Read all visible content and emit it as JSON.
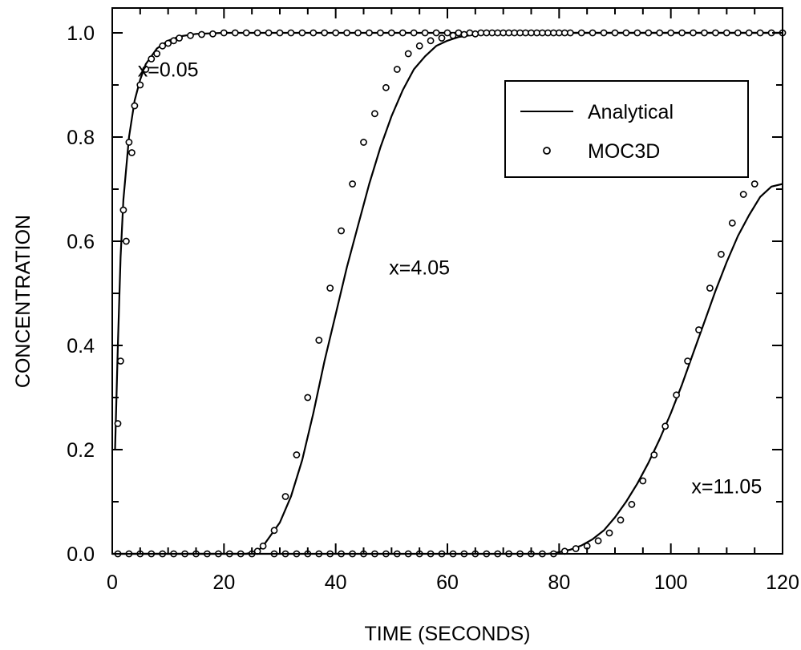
{
  "chart_data": {
    "type": "line",
    "title": "",
    "xlabel": "TIME (SECONDS)",
    "ylabel": "CONCENTRATION",
    "xlim": [
      0,
      120
    ],
    "ylim": [
      0,
      1.0
    ],
    "xticks": [
      0,
      20,
      40,
      60,
      80,
      100,
      120
    ],
    "yticks": [
      0.0,
      0.2,
      0.4,
      0.6,
      0.8,
      1.0
    ],
    "xtick_labels": [
      "0",
      "20",
      "40",
      "60",
      "80",
      "100",
      "120"
    ],
    "ytick_labels": [
      "0.0",
      "0.2",
      "0.4",
      "0.6",
      "0.8",
      "1.0"
    ],
    "grid": false,
    "legend": {
      "position": "top-right",
      "entries": [
        {
          "label": "Analytical",
          "marker": "line"
        },
        {
          "label": "MOC3D",
          "marker": "open-circle"
        }
      ]
    },
    "colors": {
      "line": "#000000",
      "marker": "#000000",
      "background": "#ffffff"
    },
    "series": [
      {
        "name": "Analytical",
        "curve_label": "x=0.05",
        "style": "line",
        "points": [
          [
            0.5,
            0.2
          ],
          [
            1,
            0.4
          ],
          [
            1.5,
            0.57
          ],
          [
            2,
            0.68
          ],
          [
            3,
            0.8
          ],
          [
            4,
            0.87
          ],
          [
            5,
            0.91
          ],
          [
            6,
            0.94
          ],
          [
            8,
            0.97
          ],
          [
            10,
            0.985
          ],
          [
            12,
            0.993
          ],
          [
            15,
            0.998
          ],
          [
            20,
            1.0
          ],
          [
            120,
            1.0
          ]
        ]
      },
      {
        "name": "MOC3D",
        "curve_label": "x=0.05",
        "style": "markers",
        "points": [
          [
            1,
            0.25
          ],
          [
            1.5,
            0.37
          ],
          [
            2,
            0.66
          ],
          [
            2.5,
            0.6
          ],
          [
            3,
            0.79
          ],
          [
            3.5,
            0.77
          ],
          [
            4,
            0.86
          ],
          [
            5,
            0.9
          ],
          [
            6,
            0.93
          ],
          [
            7,
            0.95
          ],
          [
            8,
            0.96
          ],
          [
            9,
            0.975
          ],
          [
            10,
            0.98
          ],
          [
            11,
            0.985
          ],
          [
            12,
            0.99
          ],
          [
            14,
            0.995
          ],
          [
            16,
            0.997
          ],
          [
            18,
            0.998
          ],
          [
            20,
            1.0
          ],
          [
            22,
            1.0
          ],
          [
            24,
            1.0
          ],
          [
            26,
            1.0
          ],
          [
            28,
            1.0
          ],
          [
            30,
            1.0
          ],
          [
            32,
            1.0
          ],
          [
            34,
            1.0
          ],
          [
            36,
            1.0
          ],
          [
            38,
            1.0
          ],
          [
            40,
            1.0
          ],
          [
            42,
            1.0
          ],
          [
            44,
            1.0
          ],
          [
            46,
            1.0
          ],
          [
            48,
            1.0
          ],
          [
            50,
            1.0
          ],
          [
            52,
            1.0
          ],
          [
            54,
            1.0
          ],
          [
            56,
            1.0
          ],
          [
            58,
            1.0
          ],
          [
            60,
            1.0
          ],
          [
            62,
            1.0
          ],
          [
            64,
            1.0
          ],
          [
            66,
            1.0
          ],
          [
            68,
            1.0
          ],
          [
            70,
            1.0
          ],
          [
            72,
            1.0
          ],
          [
            74,
            1.0
          ],
          [
            76,
            1.0
          ],
          [
            78,
            1.0
          ],
          [
            80,
            1.0
          ],
          [
            82,
            1.0
          ],
          [
            84,
            1.0
          ],
          [
            86,
            1.0
          ],
          [
            88,
            1.0
          ],
          [
            90,
            1.0
          ],
          [
            92,
            1.0
          ],
          [
            94,
            1.0
          ],
          [
            96,
            1.0
          ],
          [
            98,
            1.0
          ],
          [
            100,
            1.0
          ],
          [
            102,
            1.0
          ],
          [
            104,
            1.0
          ],
          [
            106,
            1.0
          ],
          [
            108,
            1.0
          ],
          [
            110,
            1.0
          ],
          [
            112,
            1.0
          ],
          [
            114,
            1.0
          ],
          [
            116,
            1.0
          ],
          [
            118,
            1.0
          ],
          [
            120,
            1.0
          ]
        ]
      },
      {
        "name": "Analytical",
        "curve_label": "x=4.05",
        "style": "line",
        "points": [
          [
            0,
            0
          ],
          [
            24,
            0
          ],
          [
            26,
            0.005
          ],
          [
            27,
            0.015
          ],
          [
            28,
            0.03
          ],
          [
            30,
            0.06
          ],
          [
            32,
            0.11
          ],
          [
            34,
            0.18
          ],
          [
            36,
            0.27
          ],
          [
            38,
            0.37
          ],
          [
            40,
            0.46
          ],
          [
            42,
            0.55
          ],
          [
            44,
            0.63
          ],
          [
            46,
            0.71
          ],
          [
            48,
            0.78
          ],
          [
            50,
            0.84
          ],
          [
            52,
            0.89
          ],
          [
            54,
            0.93
          ],
          [
            56,
            0.955
          ],
          [
            58,
            0.975
          ],
          [
            60,
            0.985
          ],
          [
            62,
            0.992
          ],
          [
            65,
            0.997
          ],
          [
            70,
            1.0
          ],
          [
            120,
            1.0
          ]
        ]
      },
      {
        "name": "MOC3D",
        "curve_label": "x=4.05",
        "style": "markers",
        "points": [
          [
            1,
            0
          ],
          [
            3,
            0
          ],
          [
            5,
            0
          ],
          [
            7,
            0
          ],
          [
            9,
            0
          ],
          [
            11,
            0
          ],
          [
            13,
            0
          ],
          [
            15,
            0
          ],
          [
            17,
            0
          ],
          [
            19,
            0
          ],
          [
            21,
            0
          ],
          [
            23,
            0
          ],
          [
            25,
            0
          ],
          [
            26,
            0.005
          ],
          [
            27,
            0.015
          ],
          [
            29,
            0.045
          ],
          [
            31,
            0.11
          ],
          [
            33,
            0.19
          ],
          [
            35,
            0.3
          ],
          [
            37,
            0.41
          ],
          [
            39,
            0.51
          ],
          [
            41,
            0.62
          ],
          [
            43,
            0.71
          ],
          [
            45,
            0.79
          ],
          [
            47,
            0.845
          ],
          [
            49,
            0.895
          ],
          [
            51,
            0.93
          ],
          [
            53,
            0.96
          ],
          [
            55,
            0.975
          ],
          [
            57,
            0.985
          ],
          [
            59,
            0.99
          ],
          [
            61,
            0.995
          ],
          [
            63,
            0.997
          ],
          [
            65,
            0.998
          ],
          [
            67,
            1.0
          ],
          [
            69,
            1.0
          ],
          [
            71,
            1.0
          ],
          [
            73,
            1.0
          ],
          [
            75,
            1.0
          ],
          [
            77,
            1.0
          ],
          [
            79,
            1.0
          ],
          [
            81,
            1.0
          ]
        ]
      },
      {
        "name": "Analytical",
        "curve_label": "x=11.05",
        "style": "line",
        "points": [
          [
            0,
            0
          ],
          [
            78,
            0
          ],
          [
            80,
            0.003
          ],
          [
            82,
            0.008
          ],
          [
            84,
            0.016
          ],
          [
            86,
            0.028
          ],
          [
            88,
            0.045
          ],
          [
            90,
            0.07
          ],
          [
            92,
            0.1
          ],
          [
            94,
            0.135
          ],
          [
            96,
            0.175
          ],
          [
            98,
            0.22
          ],
          [
            100,
            0.27
          ],
          [
            102,
            0.325
          ],
          [
            104,
            0.385
          ],
          [
            106,
            0.445
          ],
          [
            108,
            0.505
          ],
          [
            110,
            0.56
          ],
          [
            112,
            0.61
          ],
          [
            114,
            0.65
          ],
          [
            116,
            0.685
          ],
          [
            118,
            0.705
          ],
          [
            120,
            0.71
          ]
        ]
      },
      {
        "name": "MOC3D",
        "curve_label": "x=11.05",
        "style": "markers",
        "points": [
          [
            29,
            0
          ],
          [
            31,
            0
          ],
          [
            33,
            0
          ],
          [
            35,
            0
          ],
          [
            37,
            0
          ],
          [
            39,
            0
          ],
          [
            41,
            0
          ],
          [
            43,
            0
          ],
          [
            45,
            0
          ],
          [
            47,
            0
          ],
          [
            49,
            0
          ],
          [
            51,
            0
          ],
          [
            53,
            0
          ],
          [
            55,
            0
          ],
          [
            57,
            0
          ],
          [
            59,
            0
          ],
          [
            61,
            0
          ],
          [
            63,
            0
          ],
          [
            65,
            0
          ],
          [
            67,
            0
          ],
          [
            69,
            0
          ],
          [
            71,
            0
          ],
          [
            73,
            0
          ],
          [
            75,
            0
          ],
          [
            77,
            0
          ],
          [
            79,
            0
          ],
          [
            81,
            0.005
          ],
          [
            83,
            0.01
          ],
          [
            85,
            0.015
          ],
          [
            87,
            0.025
          ],
          [
            89,
            0.04
          ],
          [
            91,
            0.065
          ],
          [
            93,
            0.095
          ],
          [
            95,
            0.14
          ],
          [
            97,
            0.19
          ],
          [
            99,
            0.245
          ],
          [
            101,
            0.305
          ],
          [
            103,
            0.37
          ],
          [
            105,
            0.43
          ],
          [
            107,
            0.51
          ],
          [
            109,
            0.575
          ],
          [
            111,
            0.635
          ],
          [
            113,
            0.69
          ],
          [
            115,
            0.71
          ]
        ]
      }
    ],
    "curve_labels": [
      {
        "text": "x=0.05",
        "x": 10,
        "y": 0.93
      },
      {
        "text": "x=4.05",
        "x": 55,
        "y": 0.55
      },
      {
        "text": "x=11.05",
        "x": 110,
        "y": 0.13
      }
    ]
  }
}
